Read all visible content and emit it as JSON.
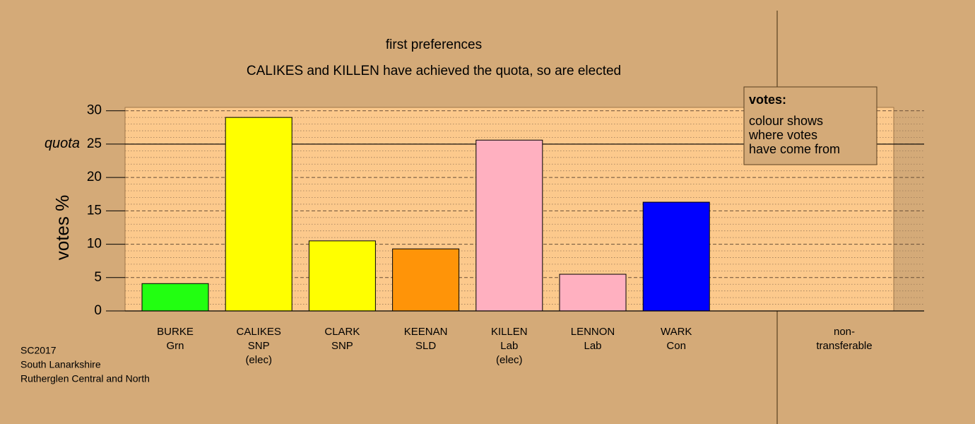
{
  "chart_data": {
    "type": "bar",
    "title": "first preferences",
    "subtitle": "CALIKES and KILLEN have achieved the quota, so are elected",
    "y_label": "votes %",
    "categories": [
      [
        "BURKE",
        "Grn"
      ],
      [
        "CALIKES",
        "SNP",
        "(elec)"
      ],
      [
        "CLARK",
        "SNP"
      ],
      [
        "KEENAN",
        "SLD"
      ],
      [
        "KILLEN",
        "Lab",
        "(elec)"
      ],
      [
        "LENNON",
        "Lab"
      ],
      [
        "WARK",
        "Con"
      ],
      [
        "non-",
        "transferable"
      ]
    ],
    "values": [
      4.1,
      29.0,
      10.5,
      9.3,
      25.6,
      5.5,
      16.3,
      0
    ],
    "colors": [
      "#22ff11",
      "#ffff00",
      "#ffff00",
      "#ff9408",
      "#ffb0c0",
      "#ffb0c0",
      "#0000ff",
      "#d4aa78"
    ],
    "ylim": [
      0,
      30.5
    ],
    "yticks": [
      0,
      5,
      10,
      15,
      20,
      25,
      30
    ],
    "grid": true,
    "quota": 25,
    "quota_label": "quota",
    "legend": {
      "title": "votes:",
      "lines": [
        "colour shows",
        "where votes",
        "have come from"
      ]
    },
    "footer": [
      "SC2017",
      "South Lanarkshire",
      "Rutherglen Central and North"
    ]
  }
}
